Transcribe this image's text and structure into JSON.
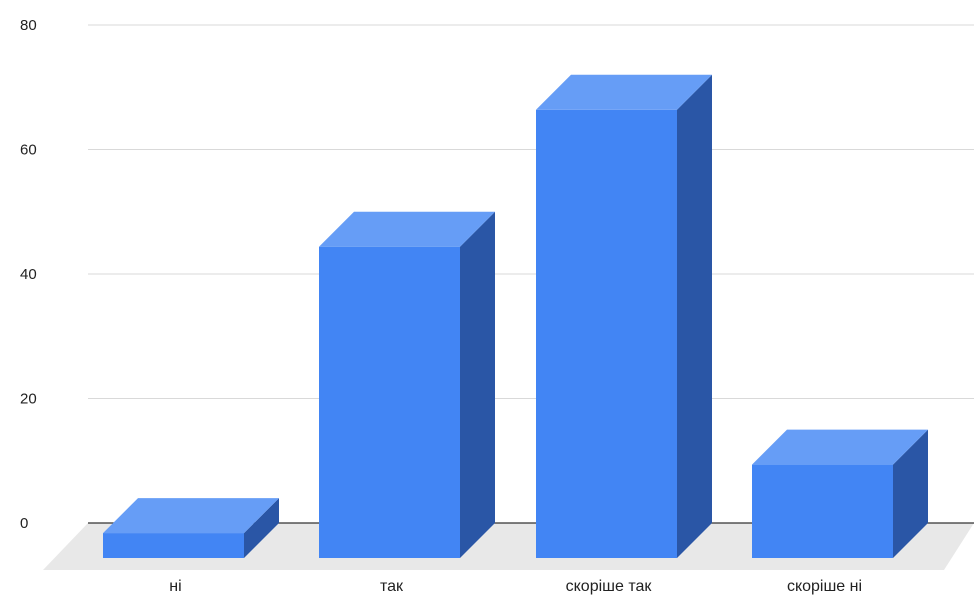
{
  "chart_data": {
    "type": "bar",
    "style": "3d",
    "categories": [
      "ні",
      "так",
      "скоріше так",
      "скоріше ні"
    ],
    "values": [
      4,
      50,
      72,
      15
    ],
    "yticks": [
      0,
      20,
      40,
      60,
      80
    ],
    "ylim": [
      0,
      80
    ],
    "grid": true,
    "legend": "none",
    "colors": {
      "front": "#4285f4",
      "top": "#669df6",
      "side": "#2a56a6",
      "floor": "#e8e8e8",
      "grid": "#d9d9d9",
      "baseline": "#333333"
    }
  }
}
